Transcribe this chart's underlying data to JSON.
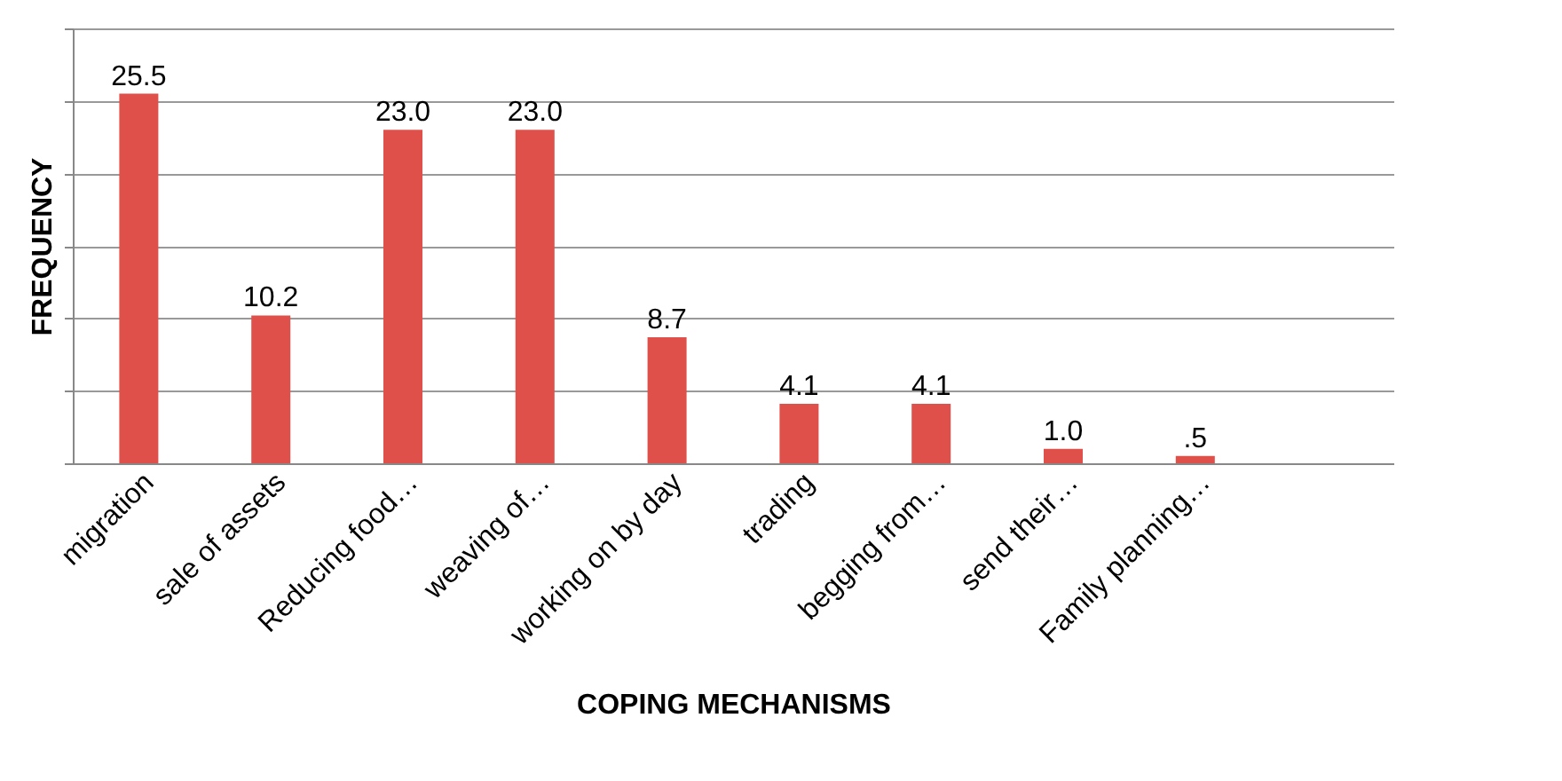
{
  "chart_data": {
    "type": "bar",
    "xlabel": "COPING MECHANISMS",
    "ylabel": "FREQUENCY",
    "categories": [
      "migration",
      "sale of assets",
      "Reducing food…",
      "weaving of…",
      "working on by  day",
      "trading",
      "begging from…",
      "send their…",
      "Family planning…",
      null
    ],
    "values": [
      25.5,
      10.2,
      23.0,
      23.0,
      8.7,
      4.1,
      4.1,
      1.0,
      0.5,
      null
    ],
    "value_labels": [
      "25.5",
      "10.2",
      "23.0",
      "23.0",
      "8.7",
      "4.1",
      "4.1",
      "1.0",
      ".5",
      null
    ],
    "color": "#e0504a",
    "ylim": [
      0,
      30
    ],
    "yticks": [
      {
        "value": 0,
        "label": null
      },
      {
        "value": 5,
        "label": null
      },
      {
        "value": 10,
        "label": null
      },
      {
        "value": 15,
        "label": null
      },
      {
        "value": 20,
        "label": null
      },
      {
        "value": 25,
        "label": null
      },
      {
        "value": 30,
        "label": null
      }
    ],
    "grid": "y",
    "tick_labels": "x"
  }
}
